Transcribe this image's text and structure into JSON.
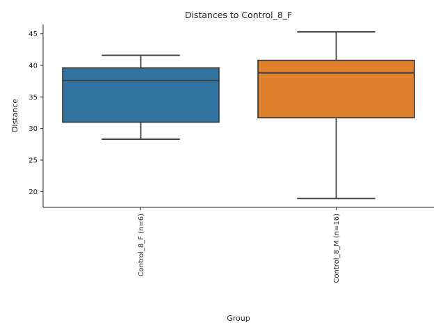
{
  "chart_data": {
    "type": "boxplot",
    "title": "Distances to Control_8_F",
    "xlabel": "Group",
    "ylabel": "Distance",
    "ylim": [
      17.5,
      46.5
    ],
    "yticks": [
      20,
      25,
      30,
      35,
      40,
      45
    ],
    "grid": false,
    "categories": [
      "Control_8_F (n=6)",
      "Control_8_M (n=16)"
    ],
    "boxes": [
      {
        "category": "Control_8_F (n=6)",
        "whisker_low": 28.3,
        "q1": 31.0,
        "median": 37.6,
        "q3": 39.6,
        "whisker_high": 41.6,
        "color": "#3274a1"
      },
      {
        "category": "Control_8_M (n=16)",
        "whisker_low": 18.9,
        "q1": 31.7,
        "median": 38.8,
        "q3": 40.8,
        "whisker_high": 45.3,
        "color": "#e1812c"
      }
    ]
  }
}
